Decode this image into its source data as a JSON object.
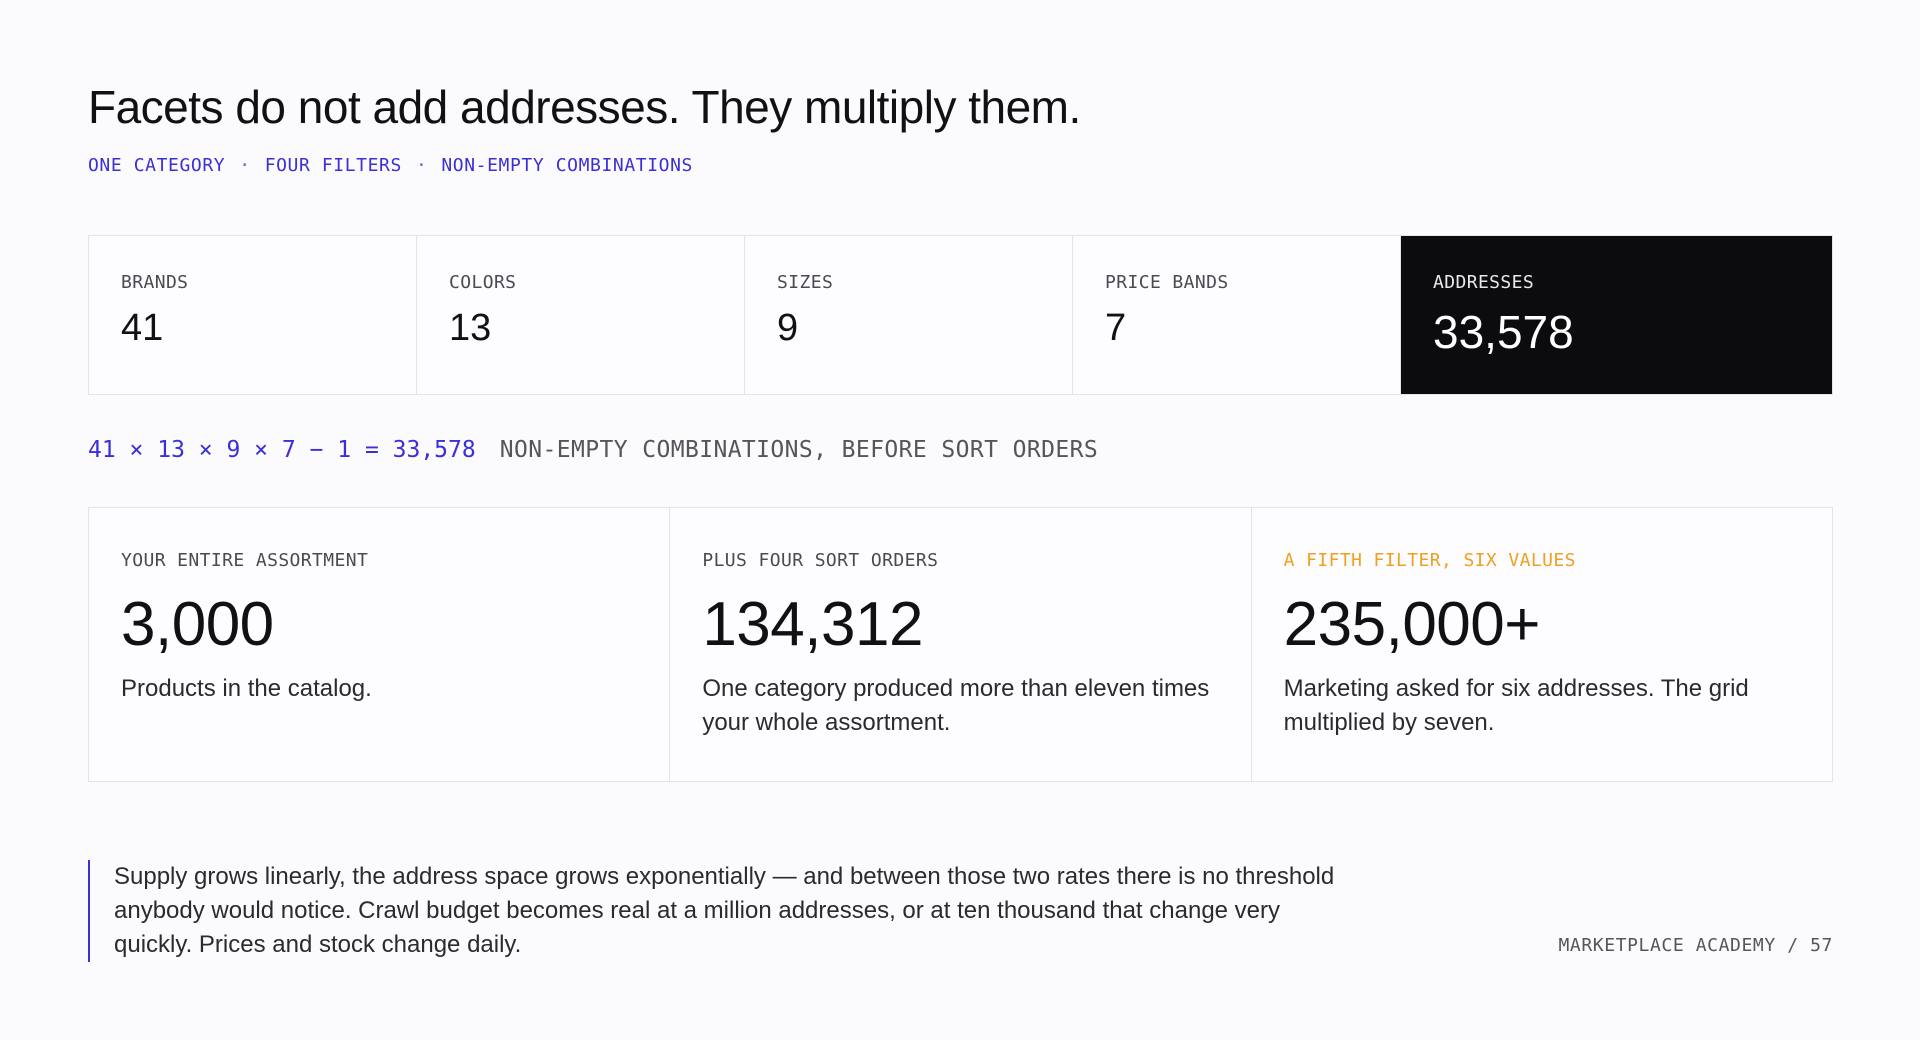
{
  "title": "Facets do not add addresses. They multiply them.",
  "subtitle": {
    "parts": [
      "ONE CATEGORY",
      "FOUR FILTERS",
      "NON-EMPTY COMBINATIONS"
    ],
    "separator": "·"
  },
  "facets": [
    {
      "label": "BRANDS",
      "value": "41"
    },
    {
      "label": "COLORS",
      "value": "13"
    },
    {
      "label": "SIZES",
      "value": "9"
    },
    {
      "label": "PRICE BANDS",
      "value": "7"
    }
  ],
  "total": {
    "label": "ADDRESSES",
    "value": "33,578"
  },
  "formula": {
    "expression": "41 × 13 × 9 × 7 − 1 = 33,578",
    "note": "NON-EMPTY COMBINATIONS, BEFORE SORT ORDERS"
  },
  "stats": [
    {
      "label": "YOUR ENTIRE ASSORTMENT",
      "value": "3,000",
      "description": "Products in the catalog."
    },
    {
      "label": "PLUS FOUR SORT ORDERS",
      "value": "134,312",
      "description": "One category produced more than eleven times your whole assortment."
    },
    {
      "label": "A FIFTH FILTER, SIX VALUES",
      "value": "235,000+",
      "description": "Marketing asked for six addresses. The grid multiplied by seven."
    }
  ],
  "quote": "Supply grows linearly, the address space grows exponentially — and between those two rates there is no threshold anybody would notice. Crawl budget becomes real at a million addresses, or at ten thousand that change very quickly. Prices and stock change daily.",
  "footer": "MARKETPLACE ACADEMY / 57",
  "colors": {
    "accent": "#3b2fd6",
    "highlight": "#f0a020",
    "dark_panel": "#0c0b0e",
    "background": "#fbfafd"
  }
}
